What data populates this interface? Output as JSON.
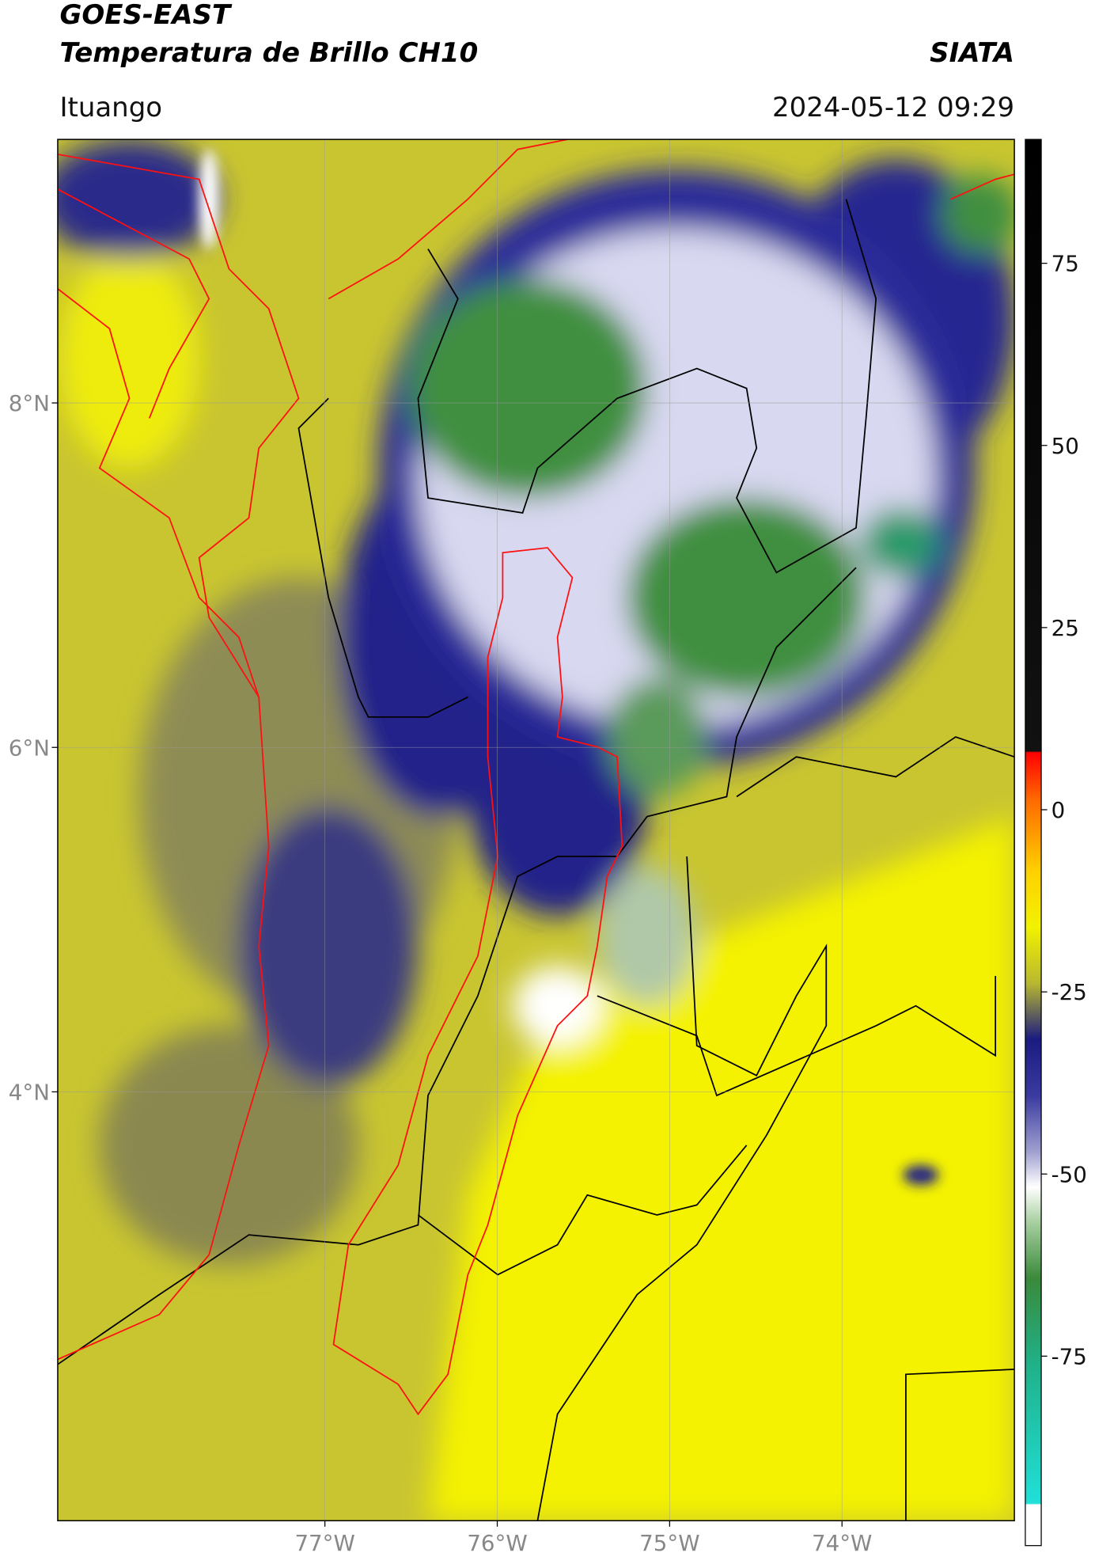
{
  "header": {
    "title": "GOES-EAST",
    "subtitle": "Temperatura de Brillo CH10",
    "brand": "SIATA",
    "location": "Ituango",
    "timestamp": "2024-05-12 09:29"
  },
  "map": {
    "lonlim": [
      -78.55,
      -73.0
    ],
    "latlim": [
      1.51,
      9.53
    ],
    "lon_ticks": [
      {
        "value": -77,
        "label": "77°W"
      },
      {
        "value": -76,
        "label": "76°W"
      },
      {
        "value": -75,
        "label": "75°W"
      },
      {
        "value": -74,
        "label": "74°W"
      }
    ],
    "lat_ticks": [
      {
        "value": 8,
        "label": "8°N"
      },
      {
        "value": 6,
        "label": "6°N"
      },
      {
        "value": 4,
        "label": "4°N"
      }
    ]
  },
  "colorbar": {
    "lim": [
      -101,
      92
    ],
    "ticks": [
      75,
      50,
      25,
      0,
      -25,
      -50,
      -75
    ]
  }
}
